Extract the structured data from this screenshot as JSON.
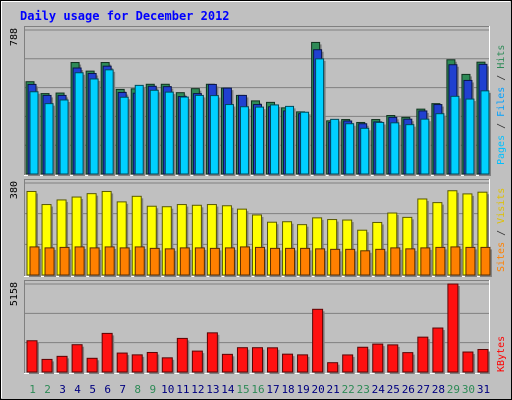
{
  "chart_data": {
    "type": "bar",
    "title": "Daily usage for December 2012",
    "categories": [
      "1",
      "2",
      "3",
      "4",
      "5",
      "6",
      "7",
      "8",
      "9",
      "10",
      "11",
      "12",
      "13",
      "14",
      "15",
      "16",
      "17",
      "18",
      "19",
      "20",
      "21",
      "22",
      "23",
      "24",
      "25",
      "26",
      "27",
      "28",
      "29",
      "30",
      "31"
    ],
    "weekend_days": [
      1,
      2,
      8,
      9,
      15,
      16,
      22,
      23,
      29,
      30
    ],
    "panels": [
      {
        "id": "requests",
        "y_max_label": "788",
        "ylim": [
          0,
          788
        ],
        "axis_label": [
          {
            "text": "Pages",
            "color": "#00c0ff"
          },
          {
            "text": " / ",
            "color": "#333333"
          },
          {
            "text": "Files",
            "color": "#00a0ff"
          },
          {
            "text": " / ",
            "color": "#333333"
          },
          {
            "text": "Hits",
            "color": "#2e8b57"
          }
        ],
        "series": [
          {
            "name": "Hits",
            "color": "#2e8b57",
            "values": [
              505,
              440,
              443,
              610,
              563,
              610,
              463,
              466,
              491,
              491,
              445,
              467,
              491,
              470,
              430,
              400,
              392,
              362,
              340,
              720,
              291,
              298,
              282,
              298,
              320,
              310,
              355,
              385,
              625,
              545,
              612
            ]
          },
          {
            "name": "Files",
            "color": "#2040d0",
            "values": [
              490,
              430,
              430,
              580,
              550,
              590,
              446,
              442,
              480,
              478,
              424,
              440,
              490,
              470,
              430,
              380,
              368,
              345,
              330,
              680,
              282,
              290,
              275,
              285,
              310,
              300,
              345,
              380,
              598,
              512,
              600
            ]
          },
          {
            "name": "Pages",
            "color": "#00d0ff",
            "values": [
              450,
              385,
              405,
              554,
              520,
              570,
              420,
              485,
              458,
              448,
              421,
              430,
              429,
              380,
              368,
              366,
              378,
              370,
              338,
              630,
              299,
              275,
              250,
              282,
              280,
              270,
              300,
              330,
              425,
              410,
              455
            ]
          }
        ]
      },
      {
        "id": "visits",
        "y_max_label": "380",
        "ylim": [
          0,
          380
        ],
        "axis_label": [
          {
            "text": "Sites",
            "color": "#ff8000"
          },
          {
            "text": " / ",
            "color": "#333333"
          },
          {
            "text": "Visits",
            "color": "#e0c000"
          }
        ],
        "series": [
          {
            "name": "Visits",
            "color": "#ffff00",
            "values": [
              345,
              291,
              310,
              322,
              336,
              345,
              302,
              325,
              284,
              282,
              291,
              288,
              291,
              286,
              272,
              248,
              218,
              220,
              208,
              236,
              229,
              227,
              185,
              217,
              256,
              238,
              314,
              299,
              348,
              335,
              342
            ]
          },
          {
            "name": "Sites",
            "color": "#ff8000",
            "values": [
              116,
              112,
              114,
              116,
              112,
              116,
              112,
              116,
              110,
              108,
              112,
              112,
              110,
              112,
              116,
              114,
              110,
              110,
              110,
              108,
              106,
              106,
              100,
              106,
              112,
              108,
              112,
              114,
              116,
              114,
              114
            ]
          }
        ]
      },
      {
        "id": "kbytes",
        "y_max_label": "5158",
        "ylim": [
          0,
          5158
        ],
        "axis_label": [
          {
            "text": "KBytes",
            "color": "#ff0000"
          }
        ],
        "series": [
          {
            "name": "KBytes",
            "color": "#ff1010",
            "values": [
              1832,
              738,
              917,
              1600,
              803,
              2263,
              1110,
              1005,
              1144,
              831,
              1969,
              1225,
              2296,
              1035,
              1425,
              1425,
              1418,
              1046,
              1005,
              3675,
              546,
              1000,
              1450,
              1635,
              1590,
              1136,
              2043,
              2578,
              5158,
              1171,
              1319
            ]
          }
        ]
      }
    ]
  }
}
